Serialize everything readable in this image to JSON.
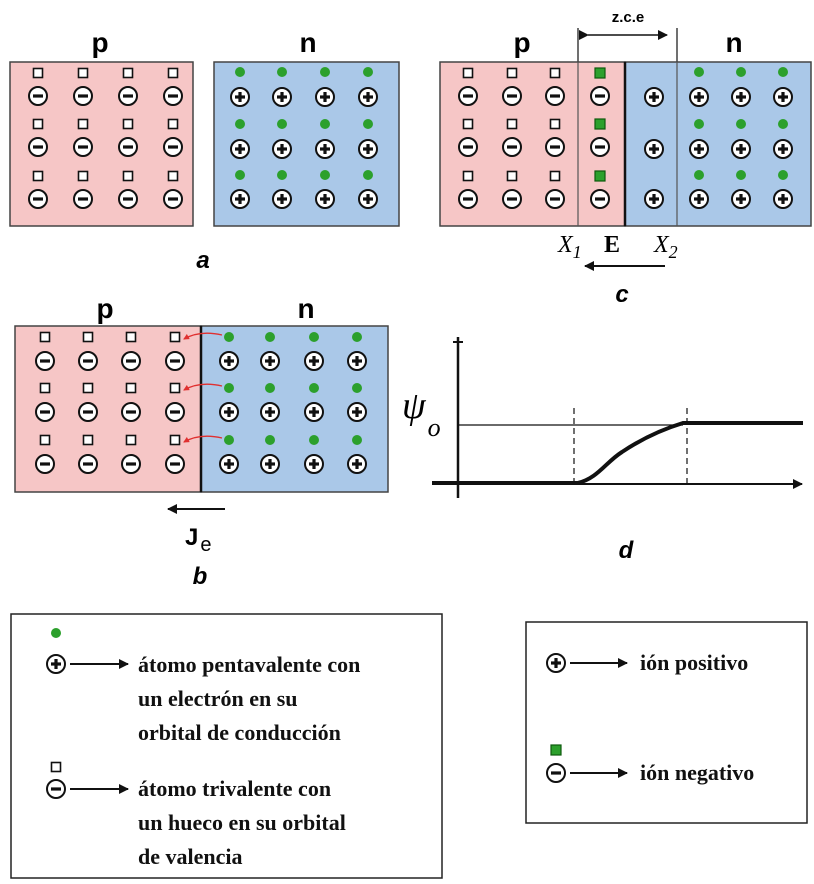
{
  "panel_a": {
    "p_label": "p",
    "n_label": "n",
    "caption": "a"
  },
  "panel_b": {
    "p_label": "p",
    "n_label": "n",
    "current_symbol": "J",
    "current_subscript": "e",
    "caption": "b"
  },
  "panel_c": {
    "p_label": "p",
    "n_label": "n",
    "zce_label": "z.c.e",
    "x1_symbol": "X",
    "x1_subscript": "1",
    "x2_symbol": "X",
    "x2_subscript": "2",
    "field_label": "E",
    "caption": "c"
  },
  "panel_d": {
    "psi_symbol": "ψ",
    "psi_subscript": "o",
    "caption": "d"
  },
  "legend_left": {
    "pentavalent_lines": [
      "átomo pentavalente con",
      "un electrón en su",
      "orbital de conducción"
    ],
    "trivalent_lines": [
      "átomo trivalente con",
      "un hueco en su orbital",
      "de valencia"
    ]
  },
  "legend_right": {
    "positive_ion": "ión positivo",
    "negative_ion": "ión negativo"
  },
  "colors": {
    "p_region": "#f6c6c6",
    "n_region": "#aac8e8",
    "electron": "#2ca02c",
    "hole_border": "#111111",
    "recombination_arrow": "#e03030"
  }
}
